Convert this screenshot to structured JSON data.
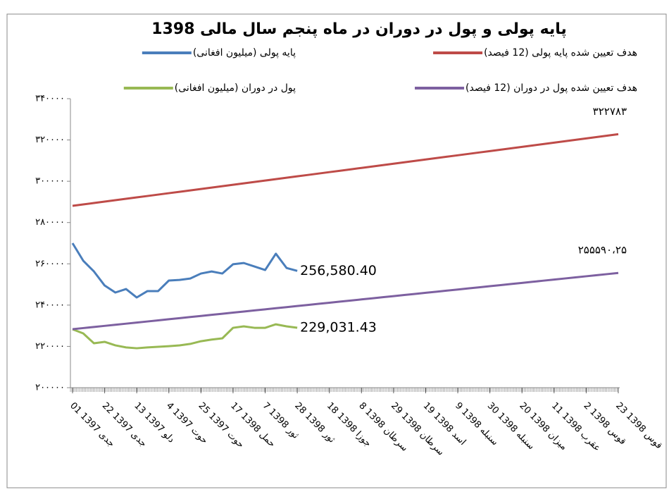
{
  "chart_data": {
    "type": "line",
    "title": "پایه پولی و پول در دوران در ماه پنجم  سال مالی 1398",
    "categories": [
      "01 جدی 1397",
      null,
      null,
      "22 جدی 1397",
      null,
      null,
      "13 دلو 1397",
      null,
      null,
      "4 حوت 1397",
      null,
      null,
      "25 حوت 1397",
      null,
      null,
      "17 حمل 1398",
      null,
      null,
      "7 ثور 1398",
      null,
      null,
      "28 ثور 1398",
      null,
      null,
      "18 جوزا 1398",
      null,
      null,
      "8 سرطان 1398",
      null,
      null,
      "29 سرطان 1398",
      null,
      null,
      "19 اسد 1398",
      null,
      null,
      "9 سنبله 1398",
      null,
      null,
      "30 سنبله 1398",
      null,
      null,
      "20 میزان 1398",
      null,
      null,
      "11 عقرب 1398",
      null,
      null,
      "2 قوس 1398",
      null,
      null,
      "23 قوس 1398"
    ],
    "series": [
      {
        "name": "پایه پولی (میلیون افغانی)",
        "color": "#4a7ebb",
        "end_label": "256,580.40",
        "values": [
          270000,
          261500,
          256300,
          249500,
          246100,
          247800,
          243700,
          246800,
          246800,
          251900,
          252200,
          252900,
          255300,
          256300,
          255300,
          259800,
          260400,
          258700,
          257000,
          264900,
          258000,
          256580.4,
          null,
          null,
          null,
          null,
          null,
          null,
          null,
          null,
          null,
          null,
          null,
          null,
          null,
          null,
          null,
          null,
          null,
          null,
          null,
          null,
          null,
          null,
          null,
          null,
          null,
          null,
          null,
          null,
          null,
          null
        ]
      },
      {
        "name": "هدف تعیین شده پایه پولی (12 فیصد)",
        "color": "#be4b48",
        "end_label": "۳۲۲۷۸۳",
        "values": [
          288100,
          288780,
          289460,
          290140,
          290820,
          291500,
          292180,
          292860,
          293540,
          294220,
          294900,
          295580,
          296260,
          296940,
          297620,
          298300,
          298980,
          299660,
          300340,
          301020,
          301700,
          302380,
          303060,
          303740,
          304420,
          305100,
          305780,
          306460,
          307140,
          307820,
          308500,
          309180,
          309860,
          310540,
          311220,
          311900,
          312580,
          313260,
          313940,
          314620,
          315300,
          315980,
          316660,
          317340,
          318020,
          318700,
          319380,
          320060,
          320740,
          321420,
          322100,
          322783
        ]
      },
      {
        "name": "پول در دوران (میلیون افغانی)",
        "color": "#98b954",
        "end_label": "229,031.43",
        "values": [
          228300,
          226300,
          221500,
          222200,
          220500,
          219500,
          219100,
          219500,
          219800,
          220100,
          220500,
          221200,
          222500,
          223300,
          223900,
          229000,
          229700,
          229000,
          229000,
          230700,
          229700,
          229031.43,
          null,
          null,
          null,
          null,
          null,
          null,
          null,
          null,
          null,
          null,
          null,
          null,
          null,
          null,
          null,
          null,
          null,
          null,
          null,
          null,
          null,
          null,
          null,
          null,
          null,
          null,
          null,
          null,
          null,
          null
        ]
      },
      {
        "name": "هدف تعیین شده پول در دوران (12 فیصد)",
        "color": "#7d60a0",
        "end_label": "۲۵۵۵۹۰،۲۵",
        "values": [
          228340,
          228874,
          229408,
          229942,
          230476,
          231010,
          231544,
          232078,
          232612,
          233146,
          233680,
          234214,
          234748,
          235282,
          235816,
          236350,
          236884,
          237418,
          237952,
          238486,
          239020,
          239554,
          240088,
          240622,
          241156,
          241690,
          242224,
          242758,
          243292,
          243826,
          244360,
          244894,
          245428,
          245962,
          246496,
          247030,
          247564,
          248098,
          248632,
          249166,
          249700,
          250234,
          250768,
          251302,
          251836,
          252370,
          252904,
          253438,
          253972,
          254506,
          255040,
          255590.25
        ]
      }
    ],
    "ylim": [
      200000,
      340000
    ],
    "yticks": [
      {
        "value": 200000,
        "label": "۲۰۰۰۰۰"
      },
      {
        "value": 220000,
        "label": "۲۲۰۰۰۰"
      },
      {
        "value": 240000,
        "label": "۲۴۰۰۰۰"
      },
      {
        "value": 260000,
        "label": "۲۶۰۰۰۰"
      },
      {
        "value": 280000,
        "label": "۲۸۰۰۰۰"
      },
      {
        "value": 300000,
        "label": "۳۰۰۰۰۰"
      },
      {
        "value": 320000,
        "label": "۳۲۰۰۰۰"
      },
      {
        "value": 340000,
        "label": "۳۴۰۰۰۰"
      }
    ],
    "grid": false
  }
}
